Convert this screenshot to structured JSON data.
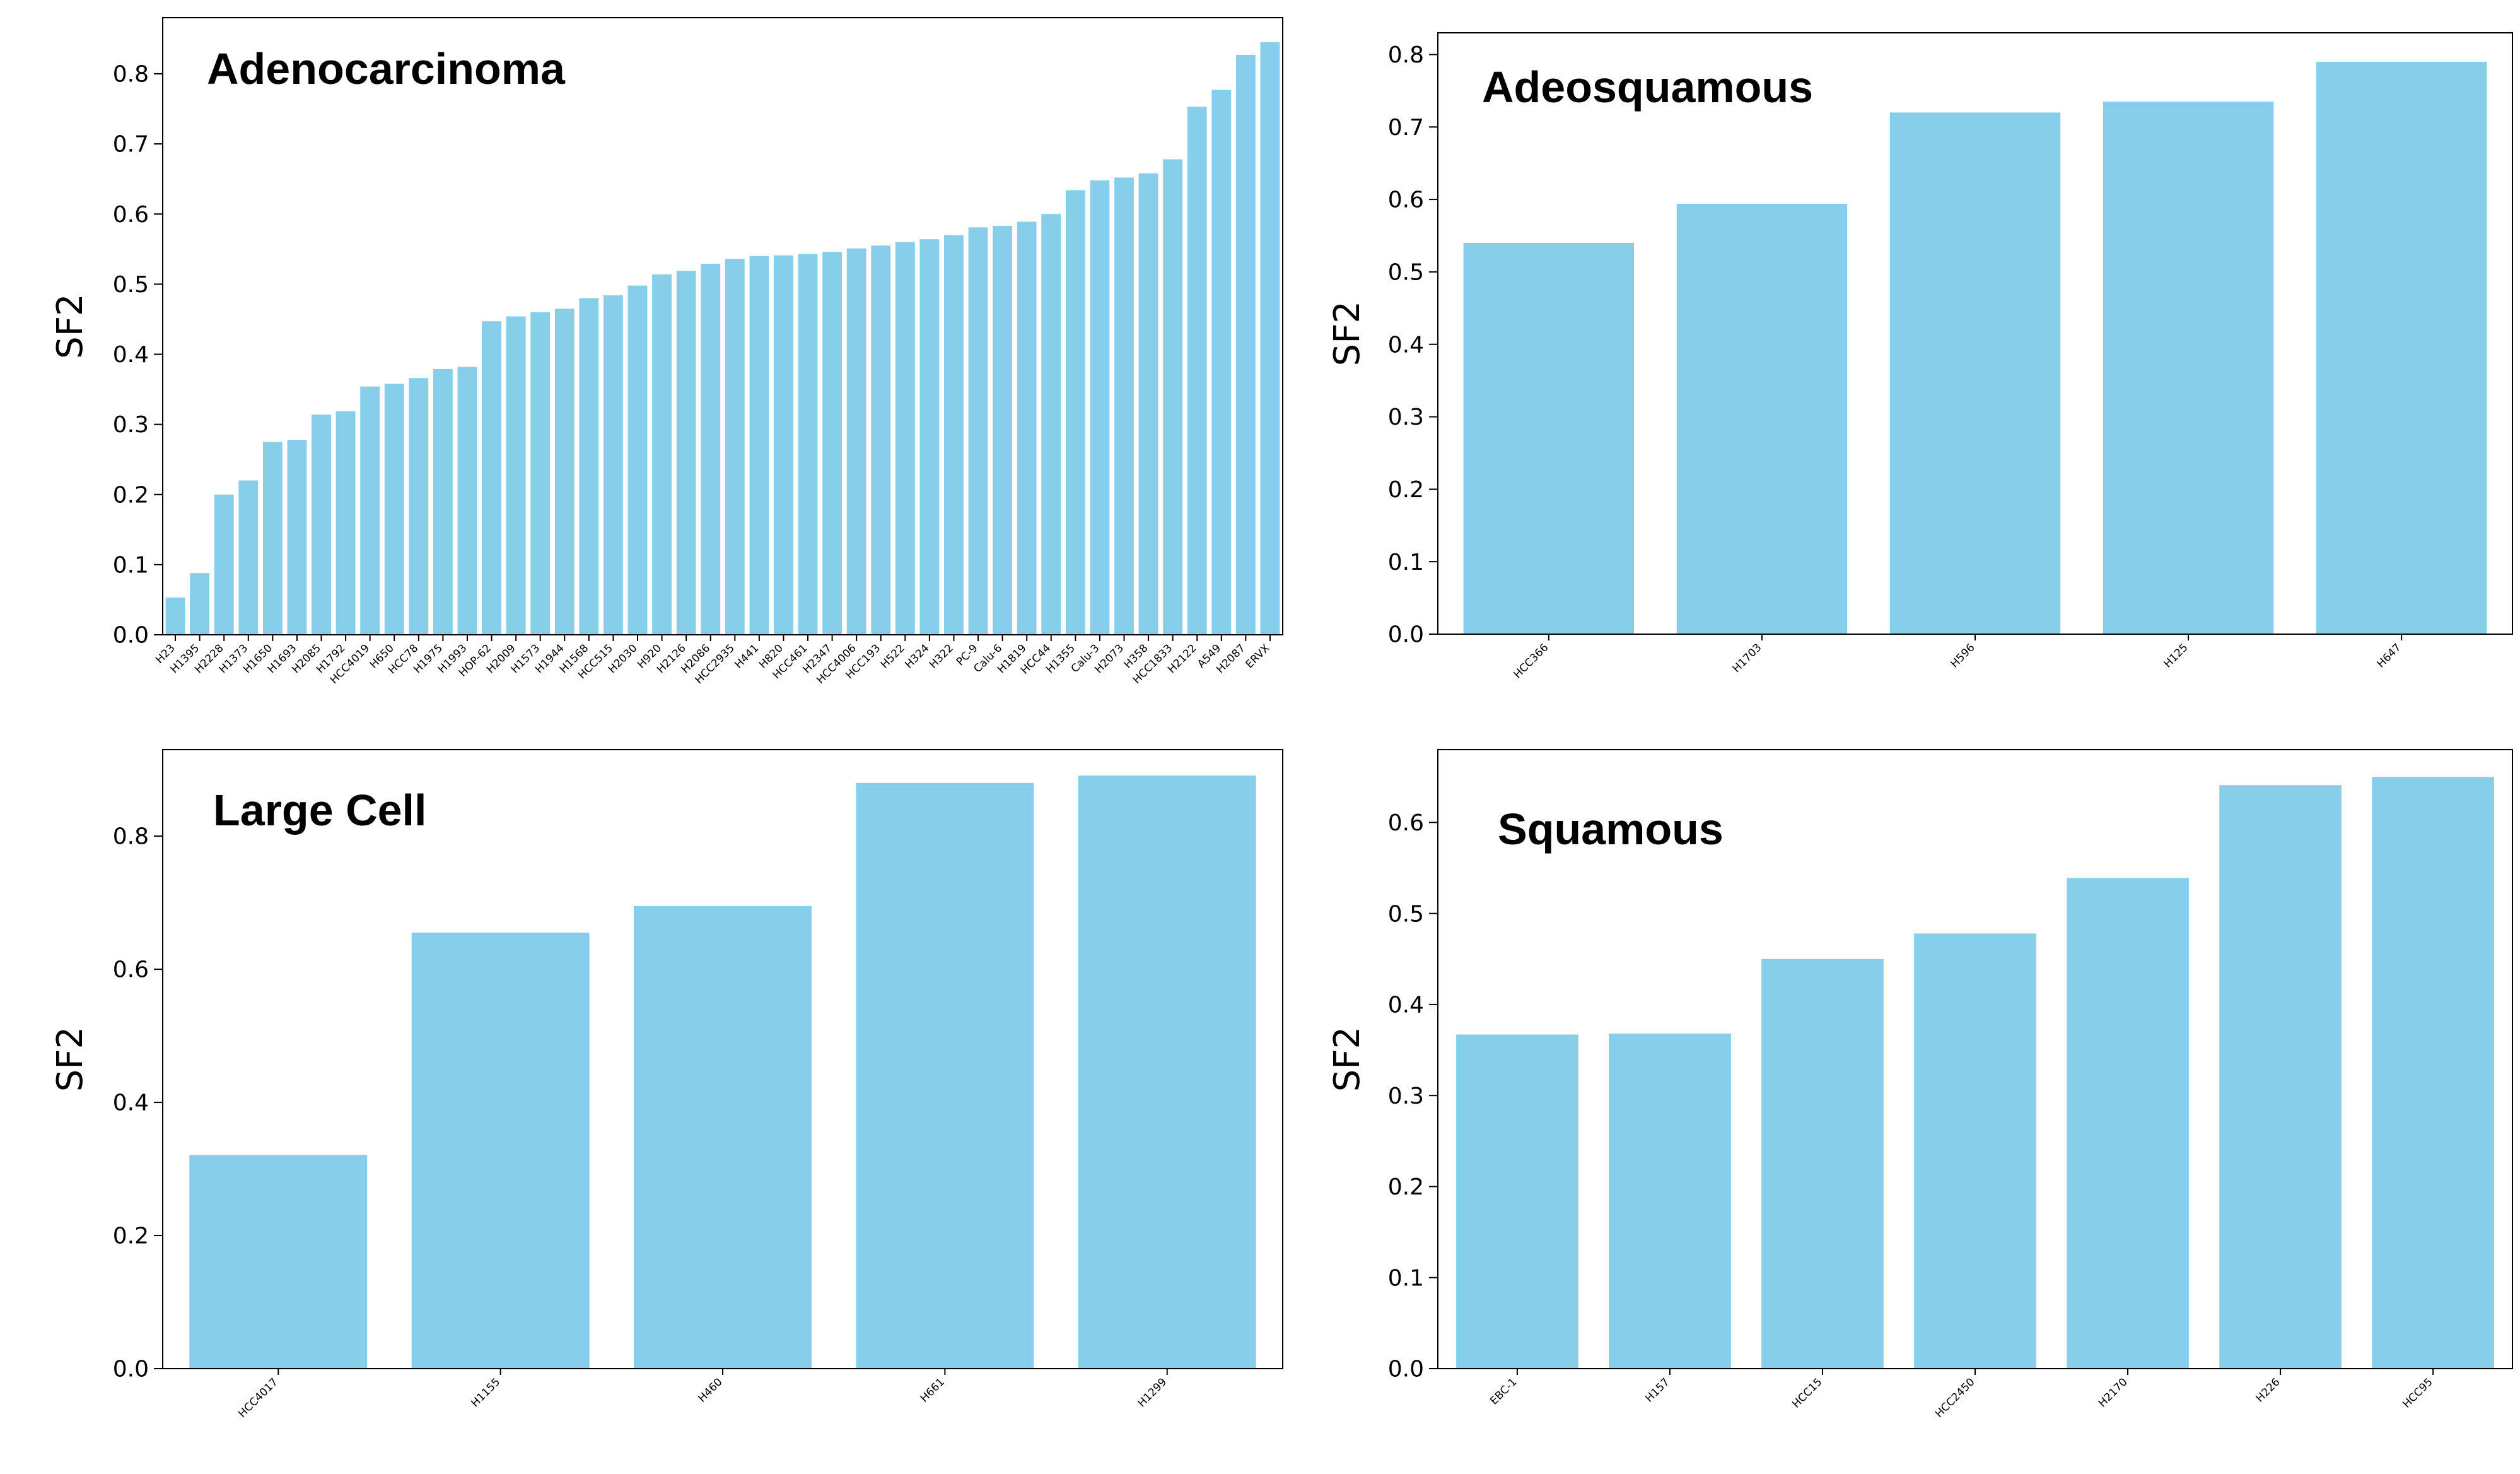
{
  "colors": {
    "bar": "#87ceeb",
    "axis": "#000000"
  },
  "chart_data": [
    {
      "type": "bar",
      "title": "Adenocarcinoma",
      "xlabel": "",
      "ylabel": "SF2",
      "ylim": [
        0,
        0.88
      ],
      "yticks": [
        0.0,
        0.1,
        0.2,
        0.3,
        0.4,
        0.5,
        0.6,
        0.7,
        0.8
      ],
      "categories": [
        "H23",
        "H1395",
        "H2228",
        "H1373",
        "H1650",
        "H1693",
        "H2085",
        "H1792",
        "HCC4019",
        "H650",
        "HCC78",
        "H1975",
        "H1993",
        "HOP-62",
        "H2009",
        "H1573",
        "H1944",
        "H1568",
        "HCC515",
        "H2030",
        "H920",
        "H2126",
        "H2086",
        "HCC2935",
        "H441",
        "H820",
        "HCC461",
        "H2347",
        "HCC4006",
        "HCC193",
        "H522",
        "H324",
        "H322",
        "PC-9",
        "Calu-6",
        "H1819",
        "HCC44",
        "H1355",
        "Calu-3",
        "H2073",
        "H358",
        "HCC1833",
        "H2122",
        "A549",
        "H2087",
        "ERVX"
      ],
      "values": [
        0.053,
        0.088,
        0.2,
        0.22,
        0.275,
        0.278,
        0.314,
        0.319,
        0.354,
        0.358,
        0.366,
        0.379,
        0.382,
        0.447,
        0.454,
        0.46,
        0.465,
        0.48,
        0.484,
        0.498,
        0.514,
        0.519,
        0.529,
        0.536,
        0.54,
        0.541,
        0.543,
        0.546,
        0.551,
        0.555,
        0.56,
        0.564,
        0.57,
        0.581,
        0.583,
        0.589,
        0.6,
        0.634,
        0.648,
        0.652,
        0.658,
        0.678,
        0.753,
        0.777,
        0.827,
        0.845
      ]
    },
    {
      "type": "bar",
      "title": "Adeosquamous",
      "xlabel": "",
      "ylabel": "SF2",
      "ylim": [
        0,
        0.83
      ],
      "yticks": [
        0.0,
        0.1,
        0.2,
        0.3,
        0.4,
        0.5,
        0.6,
        0.7,
        0.8
      ],
      "categories": [
        "HCC366",
        "H1703",
        "H596",
        "H125",
        "H647"
      ],
      "values": [
        0.54,
        0.594,
        0.72,
        0.735,
        0.79
      ]
    },
    {
      "type": "bar",
      "title": "Large Cell",
      "xlabel": "",
      "ylabel": "SF2",
      "ylim": [
        0,
        0.93
      ],
      "yticks": [
        0.0,
        0.2,
        0.4,
        0.6,
        0.8
      ],
      "categories": [
        "HCC4017",
        "H1155",
        "H460",
        "H661",
        "H1299"
      ],
      "values": [
        0.321,
        0.655,
        0.695,
        0.88,
        0.891
      ]
    },
    {
      "type": "bar",
      "title": "Squamous",
      "xlabel": "",
      "ylabel": "SF2",
      "ylim": [
        0,
        0.68
      ],
      "yticks": [
        0.0,
        0.1,
        0.2,
        0.3,
        0.4,
        0.5,
        0.6
      ],
      "categories": [
        "EBC-1",
        "H157",
        "HCC15",
        "HCC2450",
        "H2170",
        "H226",
        "HCC95"
      ],
      "values": [
        0.367,
        0.368,
        0.45,
        0.478,
        0.539,
        0.641,
        0.65
      ]
    }
  ]
}
